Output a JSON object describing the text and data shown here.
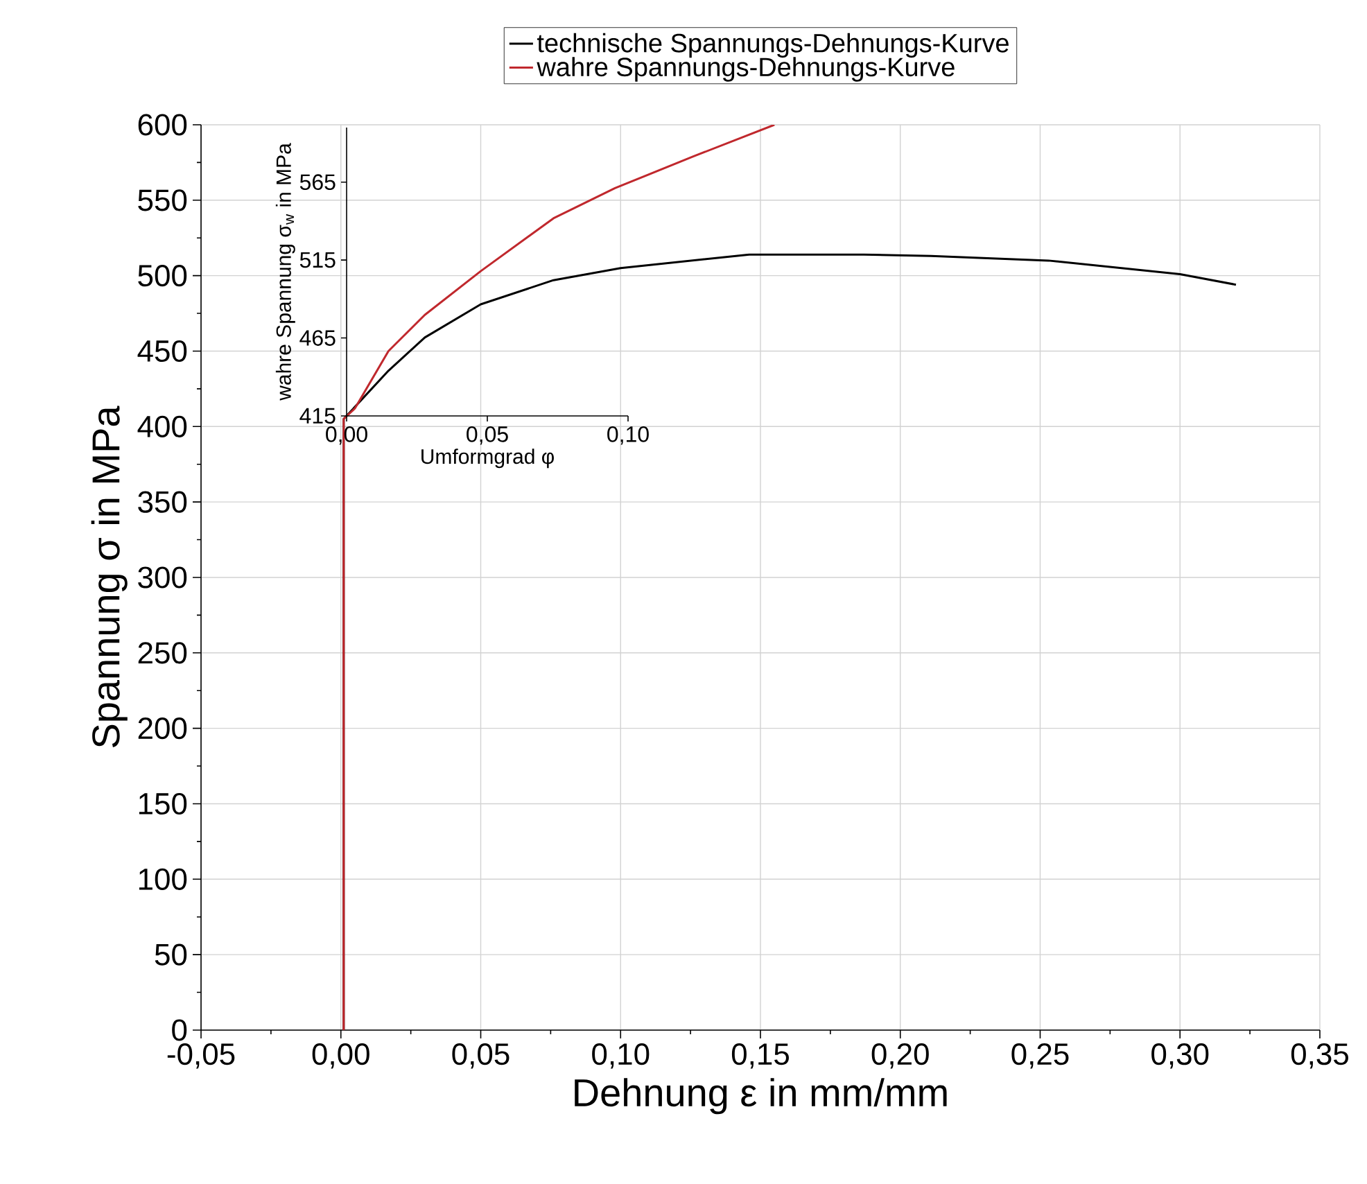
{
  "chart_data": [
    {
      "type": "line",
      "xlabel": "Dehnung ε in mm/mm",
      "ylabel": "Spannung σ in MPa",
      "xlim": [
        -0.05,
        0.35
      ],
      "ylim": [
        0,
        600
      ],
      "xticks": [
        {
          "value": -0.05,
          "label": "-0,05"
        },
        {
          "value": 0,
          "label": "0,00"
        },
        {
          "value": 0.05,
          "label": "0,05"
        },
        {
          "value": 0.1,
          "label": "0,10"
        },
        {
          "value": 0.15,
          "label": "0,15"
        },
        {
          "value": 0.2,
          "label": "0,20"
        },
        {
          "value": 0.25,
          "label": "0,25"
        },
        {
          "value": 0.3,
          "label": "0,30"
        },
        {
          "value": 0.35,
          "label": "0,35"
        }
      ],
      "yticks": [
        0,
        50,
        100,
        150,
        200,
        250,
        300,
        350,
        400,
        450,
        500,
        550,
        600
      ],
      "grid": true,
      "legend": "top",
      "series": [
        {
          "name": "technische Spannungs-Dehnungs-Kurve",
          "color": "#000000",
          "x": [
            0.001,
            0.001,
            0.002,
            0.017,
            0.03,
            0.05,
            0.076,
            0.1,
            0.146,
            0.187,
            0.211,
            0.253,
            0.3,
            0.32
          ],
          "values": [
            0,
            405,
            407,
            437,
            459,
            481,
            497,
            505,
            514,
            514,
            513,
            510,
            501,
            494
          ]
        },
        {
          "name": "wahre Spannungs-Dehnungs-Kurve",
          "color": "#c0282d",
          "x": [
            0.001,
            0.001,
            0.005,
            0.017,
            0.03,
            0.05,
            0.076,
            0.098,
            0.126,
            0.155
          ],
          "values": [
            0,
            405,
            412,
            450,
            474,
            503,
            538,
            558,
            579,
            600
          ]
        }
      ]
    },
    {
      "type": "line",
      "xlabel": "Umformgrad φ",
      "ylabel": "wahre Spannung σ$_{w}$ in MPa",
      "xlim": [
        0,
        0.1
      ],
      "ylim": [
        415,
        600
      ],
      "xticks": [
        {
          "value": 0,
          "label": "0,00"
        },
        {
          "value": 0.05,
          "label": "0,05"
        },
        {
          "value": 0.1,
          "label": "0,10"
        }
      ],
      "yticks": [
        415,
        465,
        515,
        565
      ]
    }
  ]
}
